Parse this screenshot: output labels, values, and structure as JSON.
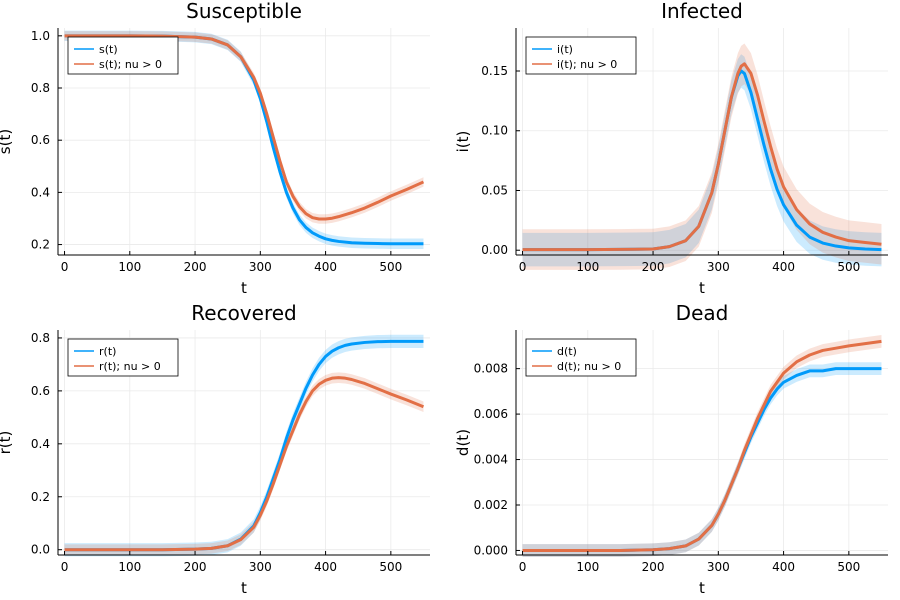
{
  "colors": {
    "series_baseline": "#009AFA",
    "series_nu": "#E26F46",
    "grid": "#EAEAEA",
    "axis": "#000000"
  },
  "chart_data": [
    {
      "type": "line",
      "title": "Susceptible",
      "xlabel": "t",
      "ylabel": "s(t)",
      "xlim": [
        -10,
        560
      ],
      "ylim": [
        0.16,
        1.03
      ],
      "xticks": [
        0,
        100,
        200,
        300,
        400,
        500
      ],
      "yticks": [
        0.2,
        0.4,
        0.6,
        0.8,
        1.0
      ],
      "ytick_labels": [
        "0.2",
        "0.4",
        "0.6",
        "0.8",
        "1.0"
      ],
      "legend": {
        "position": "top-left"
      },
      "grid": true,
      "x": [
        0,
        50,
        100,
        150,
        200,
        225,
        250,
        270,
        290,
        300,
        310,
        320,
        330,
        340,
        350,
        360,
        370,
        380,
        390,
        400,
        410,
        420,
        440,
        460,
        480,
        500,
        525,
        550
      ],
      "series": [
        {
          "name": "s(t)",
          "values": [
            1.0,
            1.0,
            1.0,
            0.999,
            0.995,
            0.988,
            0.965,
            0.92,
            0.83,
            0.76,
            0.67,
            0.57,
            0.48,
            0.4,
            0.34,
            0.295,
            0.265,
            0.245,
            0.232,
            0.222,
            0.216,
            0.212,
            0.207,
            0.205,
            0.204,
            0.203,
            0.203,
            0.203
          ],
          "band": 0.02
        },
        {
          "name": "s(t); nu > 0",
          "values": [
            1.0,
            1.0,
            1.0,
            0.999,
            0.995,
            0.988,
            0.965,
            0.92,
            0.84,
            0.78,
            0.7,
            0.61,
            0.52,
            0.44,
            0.385,
            0.345,
            0.318,
            0.303,
            0.298,
            0.298,
            0.301,
            0.307,
            0.322,
            0.34,
            0.362,
            0.386,
            0.412,
            0.44
          ],
          "band": 0.018
        }
      ]
    },
    {
      "type": "line",
      "title": "Infected",
      "xlabel": "t",
      "ylabel": "i(t)",
      "xlim": [
        -10,
        560
      ],
      "ylim": [
        -0.004,
        0.186
      ],
      "xticks": [
        0,
        100,
        200,
        300,
        400,
        500
      ],
      "yticks": [
        0.0,
        0.05,
        0.1,
        0.15
      ],
      "ytick_labels": [
        "0.00",
        "0.05",
        "0.10",
        "0.15"
      ],
      "legend": {
        "position": "top-left"
      },
      "grid": true,
      "x": [
        0,
        50,
        100,
        150,
        200,
        225,
        250,
        270,
        290,
        300,
        310,
        320,
        330,
        335,
        340,
        350,
        360,
        370,
        380,
        390,
        400,
        420,
        440,
        460,
        480,
        500,
        525,
        550
      ],
      "series": [
        {
          "name": "i(t)",
          "values": [
            0.0005,
            0.0005,
            0.0005,
            0.0007,
            0.001,
            0.003,
            0.008,
            0.02,
            0.048,
            0.072,
            0.1,
            0.128,
            0.146,
            0.15,
            0.148,
            0.132,
            0.11,
            0.088,
            0.068,
            0.051,
            0.038,
            0.021,
            0.011,
            0.006,
            0.0035,
            0.002,
            0.001,
            0.0005
          ],
          "band": 0.014
        },
        {
          "name": "i(t); nu > 0",
          "values": [
            0.0005,
            0.0005,
            0.0005,
            0.0007,
            0.001,
            0.003,
            0.008,
            0.02,
            0.048,
            0.072,
            0.1,
            0.128,
            0.148,
            0.154,
            0.156,
            0.148,
            0.13,
            0.108,
            0.087,
            0.068,
            0.053,
            0.034,
            0.022,
            0.015,
            0.011,
            0.008,
            0.0065,
            0.005
          ],
          "band": 0.017
        }
      ]
    },
    {
      "type": "line",
      "title": "Recovered",
      "xlabel": "t",
      "ylabel": "r(t)",
      "xlim": [
        -10,
        560
      ],
      "ylim": [
        -0.02,
        0.83
      ],
      "xticks": [
        0,
        100,
        200,
        300,
        400,
        500
      ],
      "yticks": [
        0.0,
        0.2,
        0.4,
        0.6,
        0.8
      ],
      "ytick_labels": [
        "0.0",
        "0.2",
        "0.4",
        "0.6",
        "0.8"
      ],
      "legend": {
        "position": "top-left"
      },
      "grid": true,
      "x": [
        0,
        50,
        100,
        150,
        200,
        225,
        250,
        270,
        290,
        300,
        310,
        320,
        330,
        340,
        350,
        360,
        370,
        380,
        390,
        400,
        410,
        420,
        430,
        440,
        460,
        480,
        500,
        525,
        550
      ],
      "series": [
        {
          "name": "r(t)",
          "values": [
            0.0,
            0.0,
            0.0,
            0.0,
            0.002,
            0.005,
            0.015,
            0.04,
            0.09,
            0.14,
            0.2,
            0.27,
            0.34,
            0.42,
            0.49,
            0.55,
            0.61,
            0.66,
            0.7,
            0.73,
            0.75,
            0.763,
            0.772,
            0.777,
            0.783,
            0.786,
            0.787,
            0.787,
            0.787
          ],
          "band": 0.025
        },
        {
          "name": "r(t); nu > 0",
          "values": [
            0.0,
            0.0,
            0.0,
            0.0,
            0.002,
            0.005,
            0.015,
            0.038,
            0.085,
            0.13,
            0.185,
            0.25,
            0.32,
            0.39,
            0.45,
            0.51,
            0.56,
            0.6,
            0.625,
            0.64,
            0.648,
            0.65,
            0.648,
            0.643,
            0.628,
            0.608,
            0.588,
            0.565,
            0.54
          ],
          "band": 0.02
        }
      ]
    },
    {
      "type": "line",
      "title": "Dead",
      "xlabel": "t",
      "ylabel": "d(t)",
      "xlim": [
        -10,
        560
      ],
      "ylim": [
        -0.0002,
        0.0097
      ],
      "xticks": [
        0,
        100,
        200,
        300,
        400,
        500
      ],
      "yticks": [
        0.0,
        0.002,
        0.004,
        0.006,
        0.008
      ],
      "ytick_labels": [
        "0.000",
        "0.002",
        "0.004",
        "0.006",
        "0.008"
      ],
      "legend": {
        "position": "top-left"
      },
      "grid": true,
      "x": [
        0,
        50,
        100,
        150,
        200,
        225,
        250,
        270,
        290,
        300,
        310,
        320,
        330,
        340,
        350,
        360,
        370,
        380,
        390,
        400,
        420,
        440,
        460,
        480,
        500,
        525,
        550
      ],
      "series": [
        {
          "name": "d(t)",
          "values": [
            0.0,
            0.0,
            0.0,
            0.0,
            3e-05,
            8e-05,
            0.0002,
            0.0005,
            0.0011,
            0.0016,
            0.0022,
            0.0029,
            0.0036,
            0.0043,
            0.005,
            0.0056,
            0.0062,
            0.0067,
            0.0071,
            0.0074,
            0.0077,
            0.0079,
            0.0079,
            0.008,
            0.008,
            0.008,
            0.008
          ],
          "band": 0.00028
        },
        {
          "name": "d(t); nu > 0",
          "values": [
            0.0,
            0.0,
            0.0,
            0.0,
            3e-05,
            8e-05,
            0.0002,
            0.0005,
            0.0011,
            0.0016,
            0.0022,
            0.0029,
            0.0036,
            0.0044,
            0.0051,
            0.0058,
            0.0064,
            0.007,
            0.0074,
            0.0078,
            0.0083,
            0.0086,
            0.0088,
            0.0089,
            0.009,
            0.0091,
            0.0092
          ],
          "band": 0.00028
        }
      ]
    }
  ]
}
